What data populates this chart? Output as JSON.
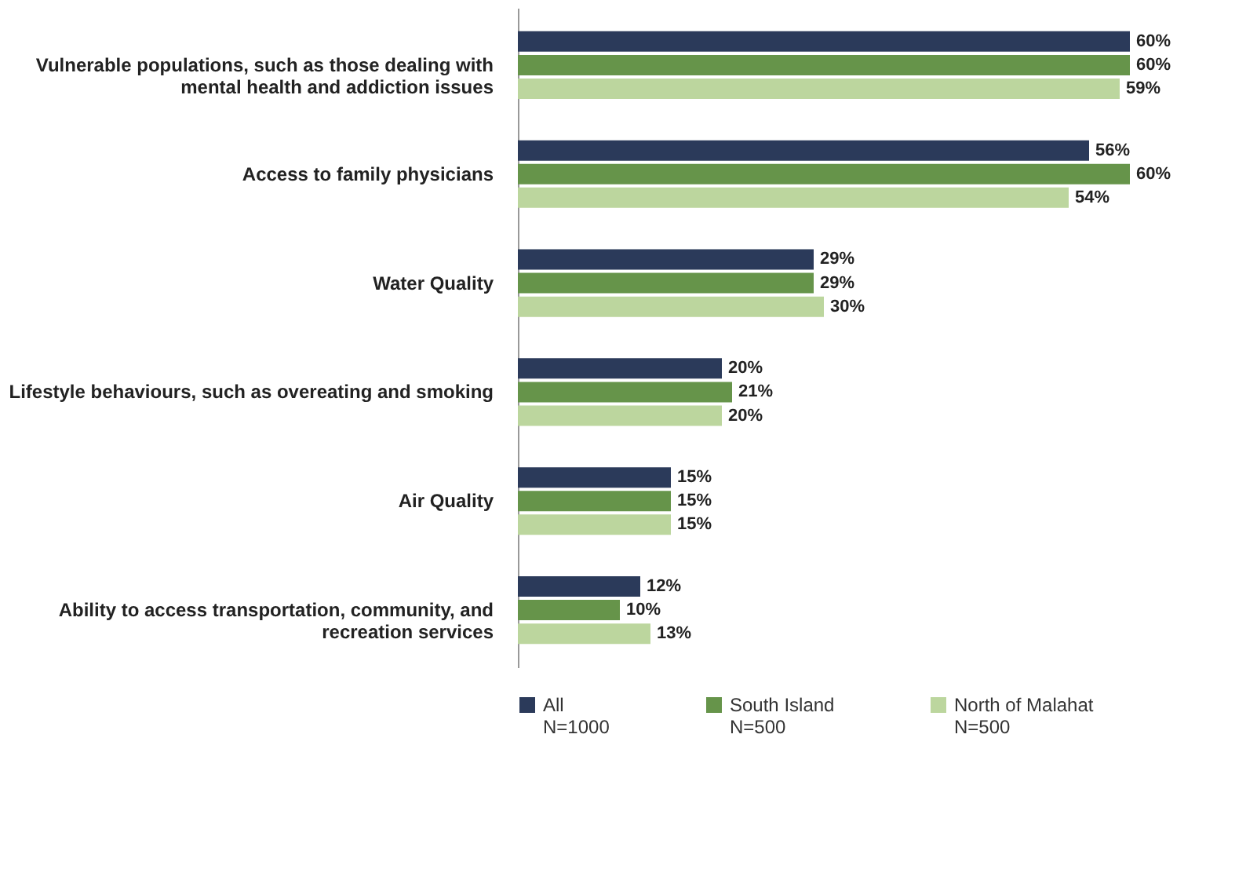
{
  "chart_data": {
    "type": "bar",
    "orientation": "horizontal",
    "grid": false,
    "legend": "bottom",
    "categories": [
      "Vulnerable populations, such as those dealing with mental health and addiction issues",
      "Access to family physicians",
      "Water Quality",
      "Lifestyle behaviours, such as overeating and smoking",
      "Air Quality",
      "Ability to access transportation, community, and recreation services"
    ],
    "series": [
      {
        "name": "All\nN=1000",
        "color": "#2b3a5a",
        "values": [
          60,
          56,
          29,
          20,
          15,
          12
        ],
        "value_labels": [
          "60%",
          "56%",
          "29%",
          "20%",
          "15%",
          "12%"
        ]
      },
      {
        "name": "South Island\nN=500",
        "color": "#66944a",
        "values": [
          60,
          60,
          29,
          21,
          15,
          10
        ],
        "value_labels": [
          "60%",
          "60%",
          "29%",
          "21%",
          "15%",
          "10%"
        ]
      },
      {
        "name": "North of Malahat\nN=500",
        "color": "#bcd69e",
        "values": [
          59,
          54,
          30,
          20,
          15,
          13
        ],
        "value_labels": [
          "59%",
          "54%",
          "30%",
          "20%",
          "15%",
          "13%"
        ]
      }
    ]
  }
}
